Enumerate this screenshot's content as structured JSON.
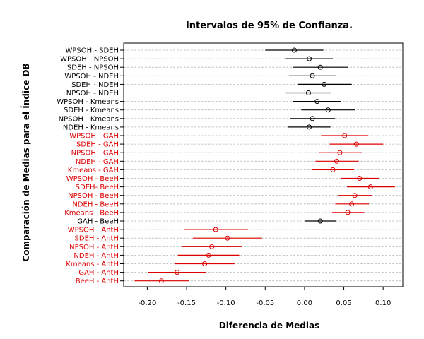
{
  "chart_data": {
    "type": "interval",
    "title": "Intervalos de 95% de Confianza.",
    "xlabel": "Diferencia de Medias",
    "ylabel": "Comparación de Medias para el Índice DB",
    "xlim": [
      -0.23,
      0.125
    ],
    "xticks": [
      -0.2,
      -0.15,
      -0.1,
      -0.05,
      0.0,
      0.05,
      0.1
    ],
    "xtick_labels": [
      "-0.20",
      "-0.15",
      "-0.10",
      "-0.05",
      "0.00",
      "0.05",
      "0.10"
    ],
    "grid": true,
    "colors": {
      "nonsignificant": "#000000",
      "significant": "#dd0000",
      "grid": "#bbbbbb"
    },
    "intervals": [
      {
        "label": "WPSOH - SDEH",
        "estimate": -0.013,
        "lower": -0.05,
        "upper": 0.024,
        "significant": false
      },
      {
        "label": "WPSOH - NPSOH",
        "estimate": 0.006,
        "lower": -0.024,
        "upper": 0.036,
        "significant": false
      },
      {
        "label": "SDEH - NPSOH",
        "estimate": 0.02,
        "lower": -0.015,
        "upper": 0.055,
        "significant": false
      },
      {
        "label": "WPSOH - NDEH",
        "estimate": 0.01,
        "lower": -0.02,
        "upper": 0.04,
        "significant": false
      },
      {
        "label": "SDEH - NDEH",
        "estimate": 0.025,
        "lower": -0.009,
        "upper": 0.06,
        "significant": false
      },
      {
        "label": "NPSOH - NDEH",
        "estimate": 0.005,
        "lower": -0.024,
        "upper": 0.034,
        "significant": false
      },
      {
        "label": "WPSOH - Kmeans",
        "estimate": 0.016,
        "lower": -0.015,
        "upper": 0.046,
        "significant": false
      },
      {
        "label": "SDEH - Kmeans",
        "estimate": 0.03,
        "lower": -0.004,
        "upper": 0.064,
        "significant": false
      },
      {
        "label": "NPSOH - Kmeans",
        "estimate": 0.01,
        "lower": -0.018,
        "upper": 0.039,
        "significant": false
      },
      {
        "label": "NDEH - Kmeans",
        "estimate": 0.006,
        "lower": -0.021,
        "upper": 0.033,
        "significant": false
      },
      {
        "label": "WPSOH - GAH",
        "estimate": 0.051,
        "lower": 0.021,
        "upper": 0.081,
        "significant": true
      },
      {
        "label": "SDEH - GAH",
        "estimate": 0.066,
        "lower": 0.032,
        "upper": 0.1,
        "significant": true
      },
      {
        "label": "NPSOH - GAH",
        "estimate": 0.045,
        "lower": 0.018,
        "upper": 0.073,
        "significant": true
      },
      {
        "label": "NDEH - GAH",
        "estimate": 0.041,
        "lower": 0.014,
        "upper": 0.069,
        "significant": true
      },
      {
        "label": "Kmeans - GAH",
        "estimate": 0.036,
        "lower": 0.01,
        "upper": 0.063,
        "significant": true
      },
      {
        "label": "WPSOH - BeeH",
        "estimate": 0.07,
        "lower": 0.046,
        "upper": 0.095,
        "significant": true
      },
      {
        "label": "SDEH- BeeH",
        "estimate": 0.084,
        "lower": 0.054,
        "upper": 0.115,
        "significant": true
      },
      {
        "label": "NPSOH - BeeH",
        "estimate": 0.064,
        "lower": 0.043,
        "upper": 0.086,
        "significant": true
      },
      {
        "label": "NDEH - BeeH",
        "estimate": 0.06,
        "lower": 0.039,
        "upper": 0.082,
        "significant": true
      },
      {
        "label": "Kmeans - BeeH",
        "estimate": 0.055,
        "lower": 0.035,
        "upper": 0.076,
        "significant": true
      },
      {
        "label": "GAH - BeeH",
        "estimate": 0.02,
        "lower": 0.001,
        "upper": 0.04,
        "significant": false
      },
      {
        "label": "WPSOH - AntH",
        "estimate": -0.113,
        "lower": -0.153,
        "upper": -0.072,
        "significant": true
      },
      {
        "label": "SDEH - AntH",
        "estimate": -0.098,
        "lower": -0.142,
        "upper": -0.054,
        "significant": true
      },
      {
        "label": "NPSOH - AntH",
        "estimate": -0.118,
        "lower": -0.156,
        "upper": -0.079,
        "significant": true
      },
      {
        "label": "NDEH - AntH",
        "estimate": -0.122,
        "lower": -0.161,
        "upper": -0.083,
        "significant": true
      },
      {
        "label": "Kmeans - AntH",
        "estimate": -0.127,
        "lower": -0.165,
        "upper": -0.089,
        "significant": true
      },
      {
        "label": "GAH - AntH",
        "estimate": -0.162,
        "lower": -0.199,
        "upper": -0.125,
        "significant": true
      },
      {
        "label": "BeeH - AntH",
        "estimate": -0.182,
        "lower": -0.216,
        "upper": -0.147,
        "significant": true
      }
    ]
  }
}
